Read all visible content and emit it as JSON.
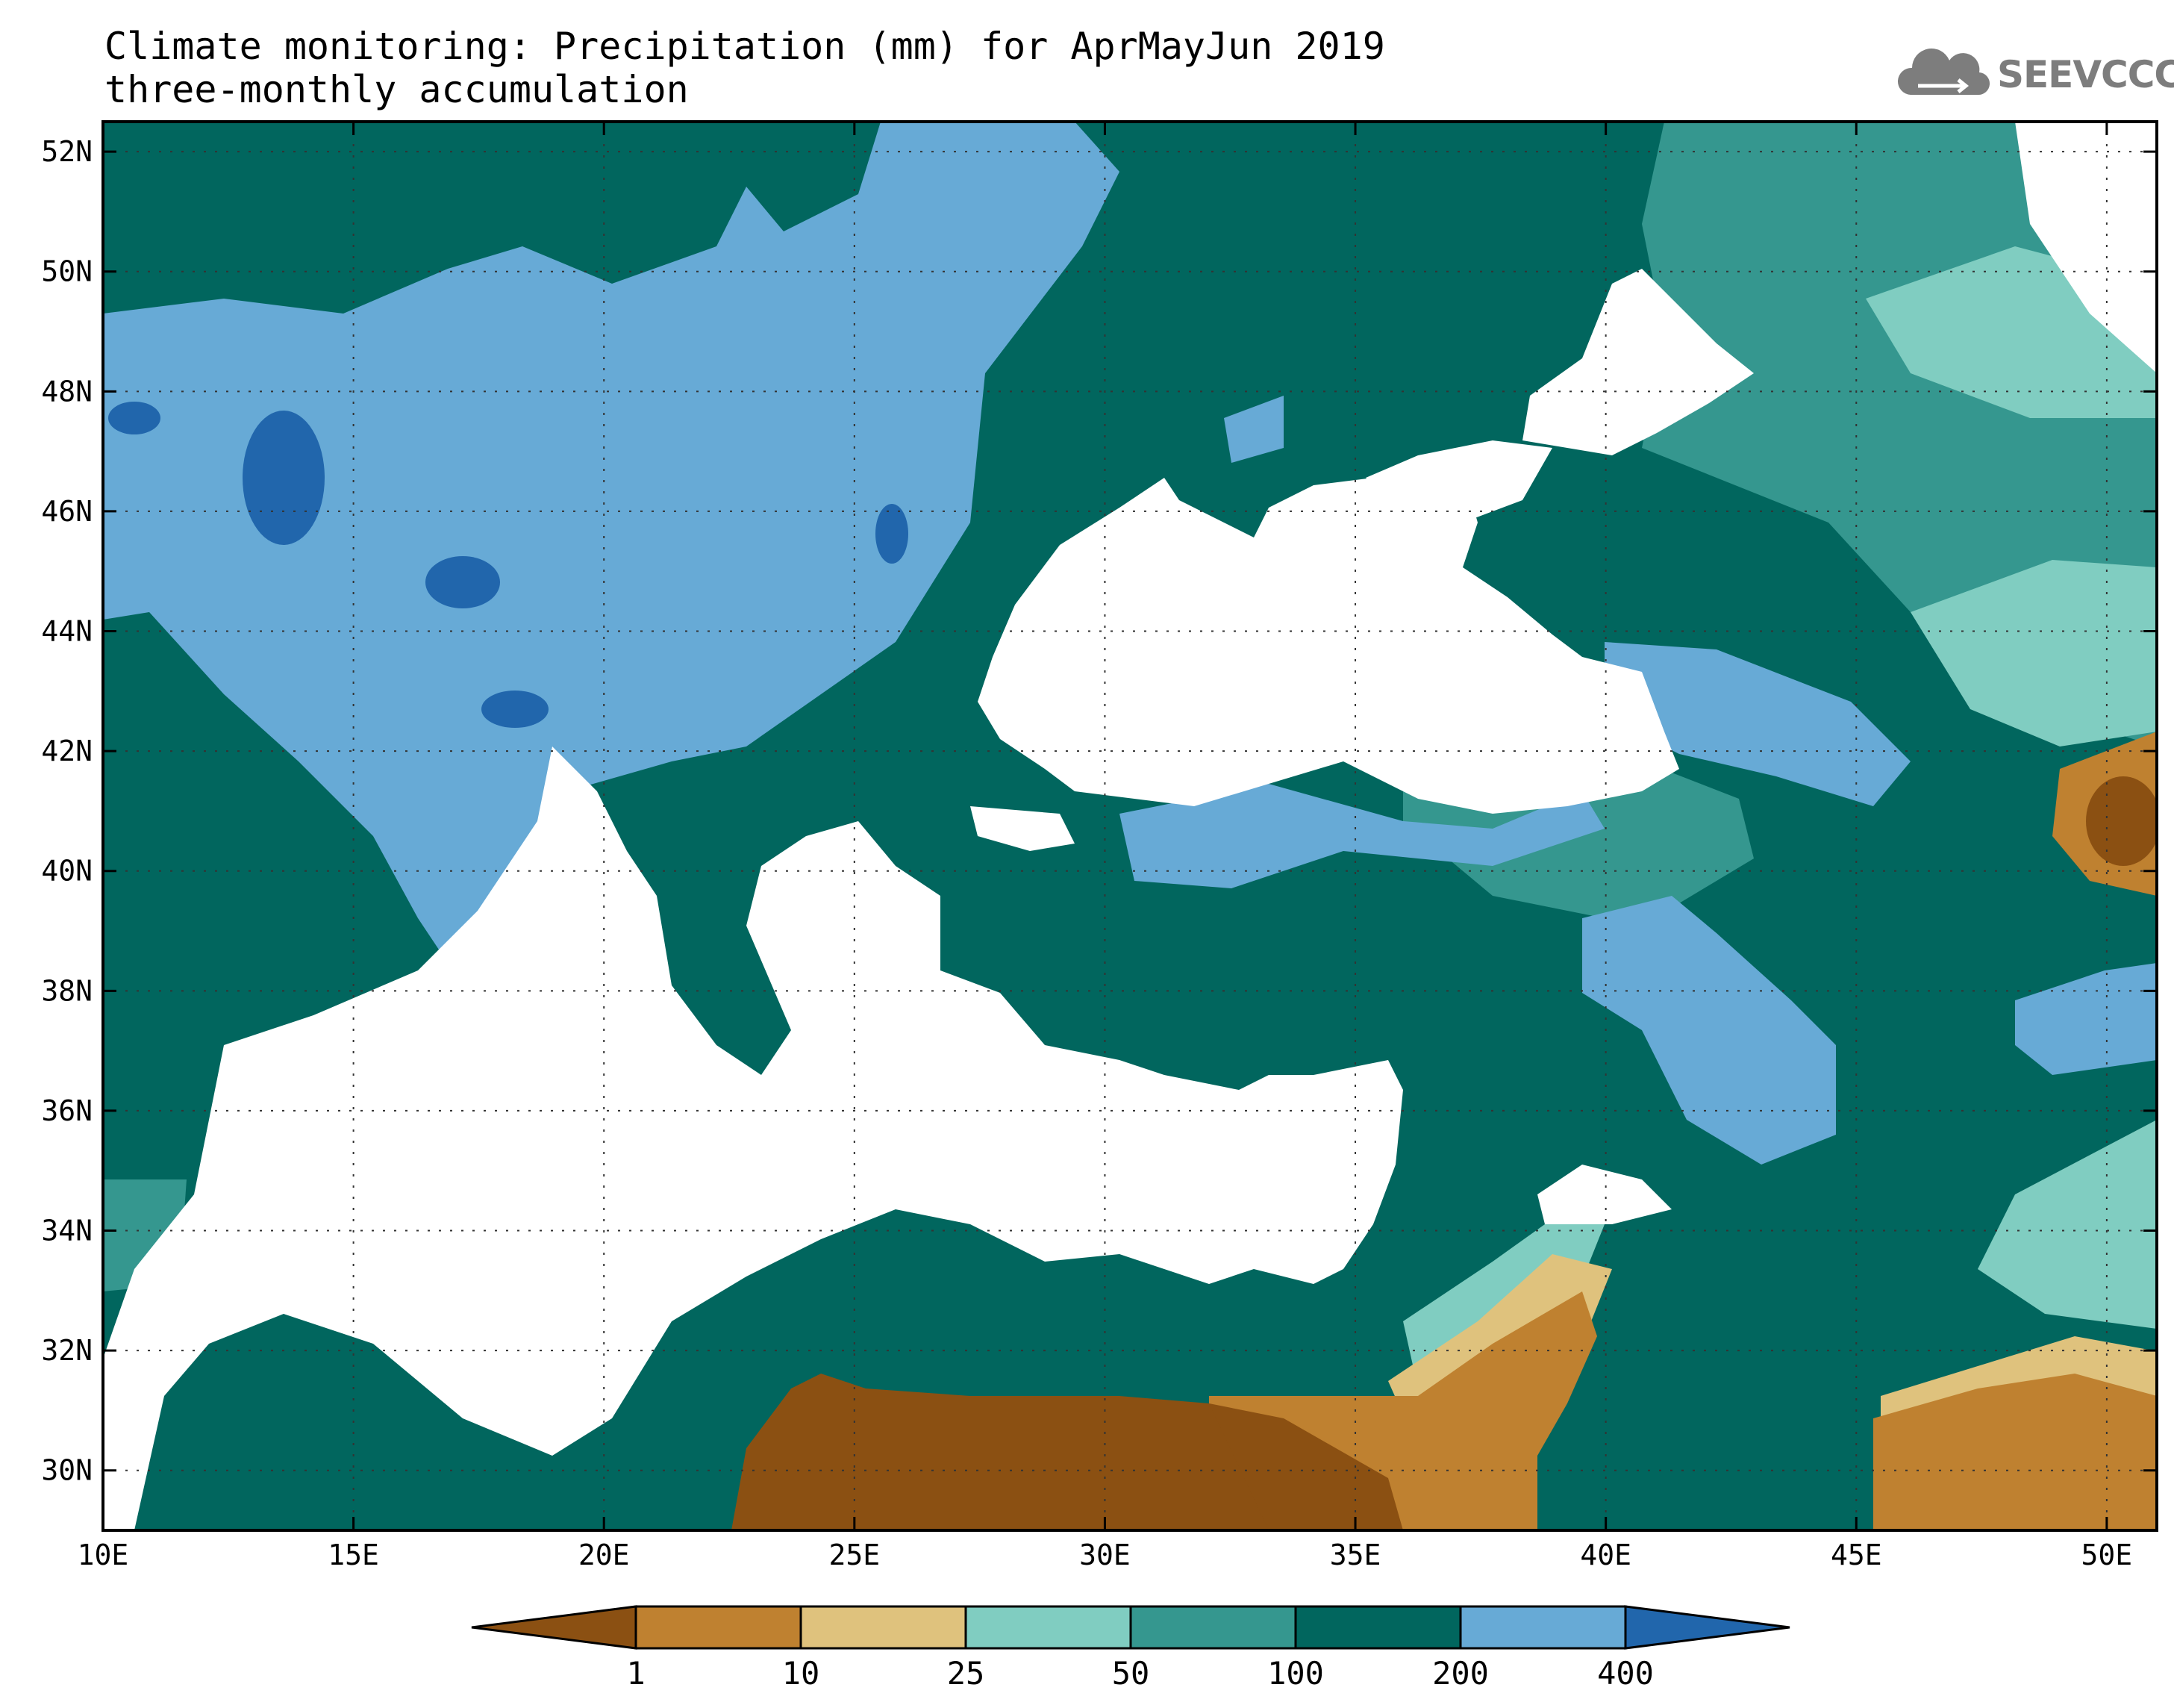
{
  "title_line1": "Climate monitoring: Precipitation (mm) for AprMayJun 2019",
  "title_line2": "three-monthly accumulation",
  "logo_text": "SEEVCCC",
  "map": {
    "lon_range": [
      10,
      51
    ],
    "lat_range": [
      29,
      52.5
    ],
    "lon_ticks": [
      "10E",
      "15E",
      "20E",
      "25E",
      "30E",
      "35E",
      "40E",
      "45E",
      "50E"
    ],
    "lat_ticks": [
      "30N",
      "32N",
      "34N",
      "36N",
      "38N",
      "40N",
      "42N",
      "44N",
      "46N",
      "48N",
      "50N",
      "52N"
    ],
    "gridlines": "dotted"
  },
  "colorbar": {
    "labels": [
      "1",
      "10",
      "25",
      "50",
      "100",
      "200",
      "400"
    ],
    "colors": [
      "#8b5012",
      "#bf8130",
      "#dfc27d",
      "#80cdc1",
      "#35978f",
      "#01665e",
      "#67aad6",
      "#2166ac"
    ]
  }
}
